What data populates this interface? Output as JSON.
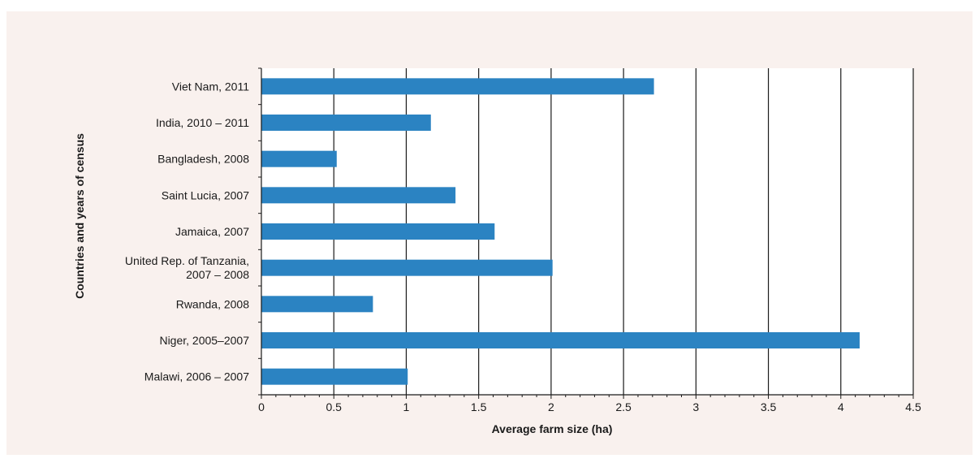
{
  "chart_data": {
    "type": "bar",
    "orientation": "horizontal",
    "categories": [
      [
        "Viet Nam, 2011"
      ],
      [
        "India, 2010 – 2011"
      ],
      [
        "Bangladesh, 2008"
      ],
      [
        "Saint Lucia, 2007"
      ],
      [
        "Jamaica, 2007"
      ],
      [
        "United Rep. of Tanzania,",
        "2007 – 2008"
      ],
      [
        "Rwanda, 2008"
      ],
      [
        "Niger, 2005–2007"
      ],
      [
        "Malawi, 2006 – 2007"
      ]
    ],
    "values": [
      2.71,
      1.17,
      0.52,
      1.34,
      1.61,
      2.01,
      0.77,
      4.13,
      1.01
    ],
    "xlabel": "Average farm size  (ha)",
    "ylabel": "Countries and years of census",
    "xlim": [
      0,
      4.5
    ],
    "xticks": [
      "0",
      "0.5",
      "1",
      "1.5",
      "2",
      "2.5",
      "3",
      "3.5",
      "4",
      "4.5"
    ],
    "grid": "vertical",
    "colors": {
      "bar": "#2b83c2",
      "panel": "#f9f1ee",
      "plot": "#ffffff",
      "line": "#1a1a1a"
    }
  }
}
